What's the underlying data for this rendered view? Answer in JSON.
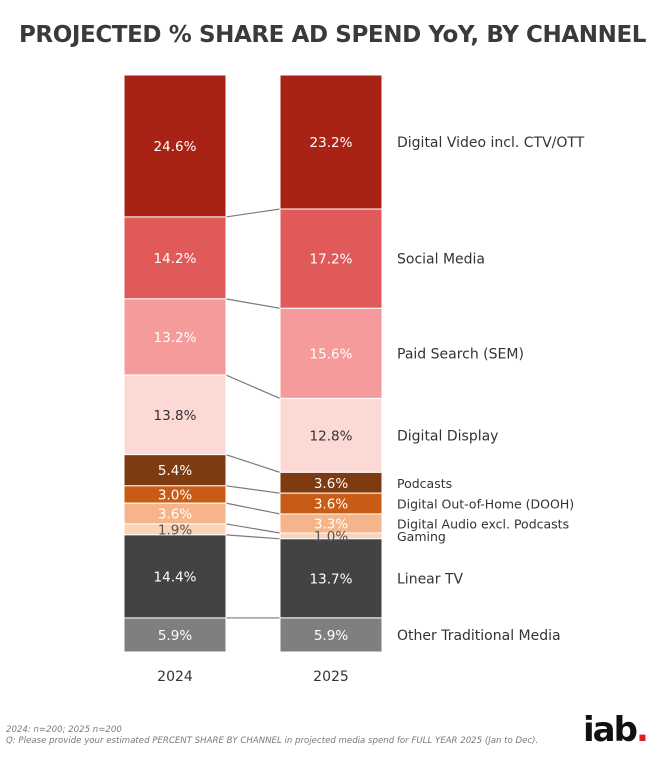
{
  "title": "PROJECTED % SHARE AD SPEND YoY, BY CHANNEL",
  "chart_data": {
    "type": "bar",
    "stacked": true,
    "categories": [
      "2024",
      "2025"
    ],
    "series": [
      {
        "name": "Digital Video incl. CTV/OTT",
        "values": [
          24.6,
          23.2
        ],
        "labels": [
          "24.6%",
          "23.2%"
        ],
        "color": "#A82215",
        "text_color": "#ffffff"
      },
      {
        "name": "Social Media",
        "values": [
          14.2,
          17.2
        ],
        "labels": [
          "14.2%",
          "17.2%"
        ],
        "color": "#E05A5A",
        "text_color": "#ffffff"
      },
      {
        "name": "Paid Search (SEM)",
        "values": [
          13.2,
          15.6
        ],
        "labels": [
          "13.2%",
          "15.6%"
        ],
        "color": "#F59B9B",
        "text_color": "#ffffff"
      },
      {
        "name": "Digital Display",
        "values": [
          13.8,
          12.8
        ],
        "labels": [
          "13.8%",
          "12.8%"
        ],
        "color": "#FDD9D6",
        "text_color": "#333333"
      },
      {
        "name": "Podcasts",
        "values": [
          5.4,
          3.6
        ],
        "labels": [
          "5.4%",
          "3.6%"
        ],
        "color": "#7E3A10",
        "text_color": "#ffffff"
      },
      {
        "name": "Digital Out-of-Home (DOOH)",
        "values": [
          3.0,
          3.6
        ],
        "labels": [
          "3.0%",
          "3.6%"
        ],
        "color": "#C85C14",
        "text_color": "#ffffff"
      },
      {
        "name": "Digital Audio excl. Podcasts",
        "values": [
          3.6,
          3.3
        ],
        "labels": [
          "3.6%",
          "3.3%"
        ],
        "color": "#F5B48A",
        "text_color": "#ffffff"
      },
      {
        "name": "Gaming",
        "values": [
          1.9,
          1.0
        ],
        "labels": [
          "1.9%",
          "1.0%"
        ],
        "color": "#FBD3B8",
        "text_color": "#555555"
      },
      {
        "name": "Linear TV",
        "values": [
          14.4,
          13.7
        ],
        "labels": [
          "14.4%",
          "13.7%"
        ],
        "color": "#434343",
        "text_color": "#ffffff"
      },
      {
        "name": "Other Traditional Media",
        "values": [
          5.9,
          5.9
        ],
        "labels": [
          "5.9%",
          "5.9%"
        ],
        "color": "#7F7F7F",
        "text_color": "#ffffff"
      }
    ],
    "legend": "right",
    "grid": false
  },
  "footnote": {
    "line1": "2024: n=200; 2025 n=200",
    "line2": "Q: Please provide your estimated PERCENT SHARE BY CHANNEL in projected media spend for FULL YEAR 2025 (Jan to Dec)."
  },
  "logo": {
    "text": "iab",
    "dot": "."
  }
}
